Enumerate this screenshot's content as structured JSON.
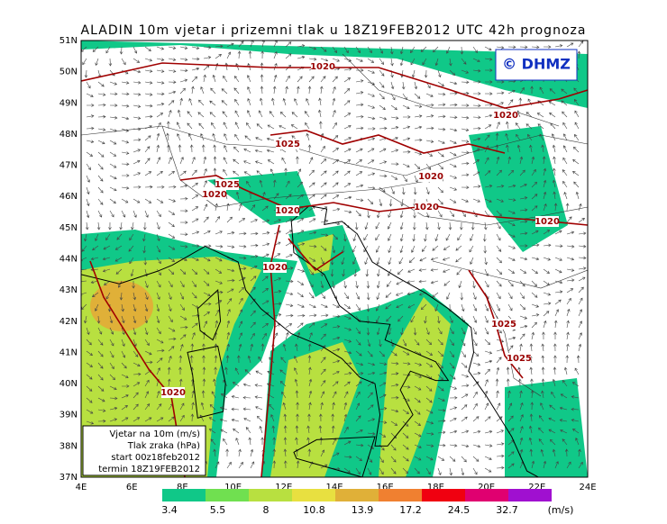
{
  "header": {
    "title": "ALADIN 10m vjetar i prizemni tlak u 18Z19FEB2012 UTC 42h prognoza"
  },
  "logo": "© DHMZ",
  "map": {
    "lat_labels": [
      "51N",
      "50N",
      "49N",
      "48N",
      "47N",
      "46N",
      "45N",
      "44N",
      "43N",
      "42N",
      "41N",
      "40N",
      "39N",
      "38N",
      "37N"
    ],
    "lon_labels": [
      "4E",
      "6E",
      "8E",
      "10E",
      "12E",
      "14E",
      "16E",
      "18E",
      "20E",
      "22E",
      "24E"
    ],
    "isobar_labels": [
      "1020",
      "1020",
      "1025",
      "1025",
      "1020",
      "1020",
      "1020",
      "1020",
      "1020",
      "1020",
      "1025",
      "1025",
      "1020"
    ]
  },
  "legend_box": {
    "lines": [
      "Vjetar na 10m (m/s)",
      "Tlak zraka (hPa)",
      "start 00z18feb2012",
      "termin 18Z19FEB2012"
    ]
  },
  "colorbar": {
    "labels": [
      3.4,
      5.5,
      8,
      10.8,
      13.9,
      17.2,
      24.5,
      32.7
    ],
    "unit": "(m/s)",
    "colors": [
      "#10c888",
      "#70e050",
      "#b8e040",
      "#e8e040",
      "#e0b038",
      "#f08030",
      "#f00010",
      "#e00070",
      "#a010d0"
    ]
  }
}
